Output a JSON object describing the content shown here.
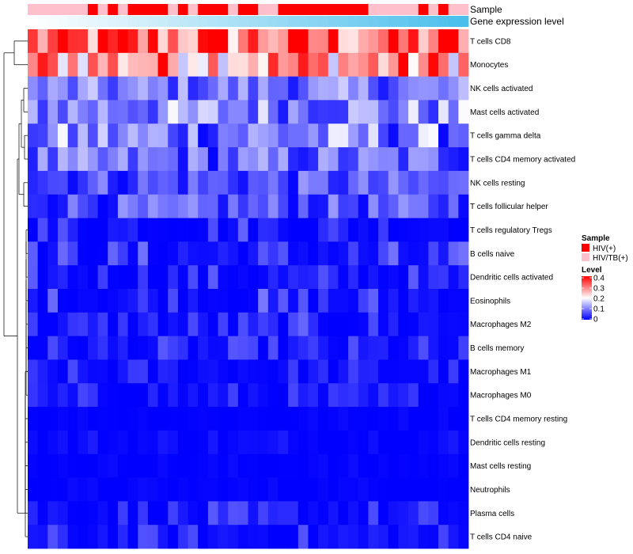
{
  "chart_data": {
    "type": "heatmap",
    "title": "",
    "annotation_tracks": [
      {
        "label": "Sample"
      },
      {
        "label": "Gene expression level"
      }
    ],
    "rows": [
      "T cells CD8",
      "Monocytes",
      "NK cells activated",
      "Mast cells activated",
      "T cells gamma delta",
      "T cells CD4 memory activated",
      "NK cells resting",
      "T cells follicular helper",
      "T cells regulatory  Tregs",
      "B cells naive",
      "Dendritic cells activated",
      "Eosinophils",
      "Macrophages M2",
      "B cells memory",
      "Macrophages M1",
      "Macrophages M0",
      "T cells CD4 memory resting",
      "Dendritic cells resting",
      "Mast cells resting",
      "Neutrophils",
      "Plasma cells",
      "T cells CD4 naive"
    ],
    "n_samples": 44,
    "sample_groups": [
      "HIV/TB(+)",
      "HIV/TB(+)",
      "HIV/TB(+)",
      "HIV/TB(+)",
      "HIV/TB(+)",
      "HIV/TB(+)",
      "HIV(+)",
      "HIV/TB(+)",
      "HIV(+)",
      "HIV/TB(+)",
      "HIV(+)",
      "HIV(+)",
      "HIV(+)",
      "HIV(+)",
      "HIV/TB(+)",
      "HIV(+)",
      "HIV/TB(+)",
      "HIV(+)",
      "HIV(+)",
      "HIV(+)",
      "HIV/TB(+)",
      "HIV(+)",
      "HIV(+)",
      "HIV/TB(+)",
      "HIV/TB(+)",
      "HIV(+)",
      "HIV(+)",
      "HIV(+)",
      "HIV(+)",
      "HIV(+)",
      "HIV(+)",
      "HIV(+)",
      "HIV(+)",
      "HIV(+)",
      "HIV/TB(+)",
      "HIV/TB(+)",
      "HIV/TB(+)",
      "HIV/TB(+)",
      "HIV/TB(+)",
      "HIV(+)",
      "HIV/TB(+)",
      "HIV(+)",
      "HIV/TB(+)",
      "HIV/TB(+)"
    ],
    "gene_expression_gradient": {
      "low": "#ffffff",
      "high": "#4bbfec"
    },
    "value_pattern": {
      "T cells CD8": {
        "min": 0.18,
        "max": 0.45
      },
      "Monocytes": {
        "min": 0.15,
        "max": 0.42
      },
      "NK cells activated": {
        "min": 0.02,
        "max": 0.16
      },
      "Mast cells activated": {
        "min": 0.02,
        "max": 0.2
      },
      "T cells gamma delta": {
        "min": 0.0,
        "max": 0.2
      },
      "T cells CD4 memory activated": {
        "min": 0.0,
        "max": 0.15
      },
      "NK cells resting": {
        "min": 0.0,
        "max": 0.12
      },
      "T cells follicular helper": {
        "min": 0.0,
        "max": 0.12
      },
      "T cells regulatory  Tregs": {
        "min": 0.0,
        "max": 0.1
      },
      "B cells naive": {
        "min": 0.0,
        "max": 0.1
      },
      "Dendritic cells activated": {
        "min": 0.0,
        "max": 0.08
      },
      "Eosinophils": {
        "min": 0.0,
        "max": 0.1
      },
      "Macrophages M2": {
        "min": 0.0,
        "max": 0.08
      },
      "B cells memory": {
        "min": 0.0,
        "max": 0.07
      },
      "Macrophages M1": {
        "min": 0.0,
        "max": 0.06
      },
      "Macrophages M0": {
        "min": 0.0,
        "max": 0.06
      },
      "T cells CD4 memory resting": {
        "min": 0.0,
        "max": 0.01
      },
      "Dendritic cells resting": {
        "min": 0.0,
        "max": 0.03
      },
      "Mast cells resting": {
        "min": 0.0,
        "max": 0.01
      },
      "Neutrophils": {
        "min": 0.0,
        "max": 0.01
      },
      "Plasma cells": {
        "min": 0.0,
        "max": 0.07
      },
      "T cells CD4 naive": {
        "min": 0.0,
        "max": 0.07
      }
    },
    "legend": {
      "sample": {
        "title": "Sample",
        "items": [
          {
            "label": "HIV(+)",
            "color": "#ff0000"
          },
          {
            "label": "HIV/TB(+)",
            "color": "#ffc0cb"
          }
        ]
      },
      "level": {
        "title": "Level",
        "ticks": [
          "0.4",
          "0.3",
          "0.2",
          "0.1",
          "0"
        ],
        "tick_values": [
          0.4,
          0.3,
          0.2,
          0.1,
          0
        ],
        "range": [
          0,
          0.4
        ],
        "colors": {
          "low": "#0000ff",
          "mid": "#ffffff",
          "high": "#ff0000"
        }
      }
    }
  }
}
